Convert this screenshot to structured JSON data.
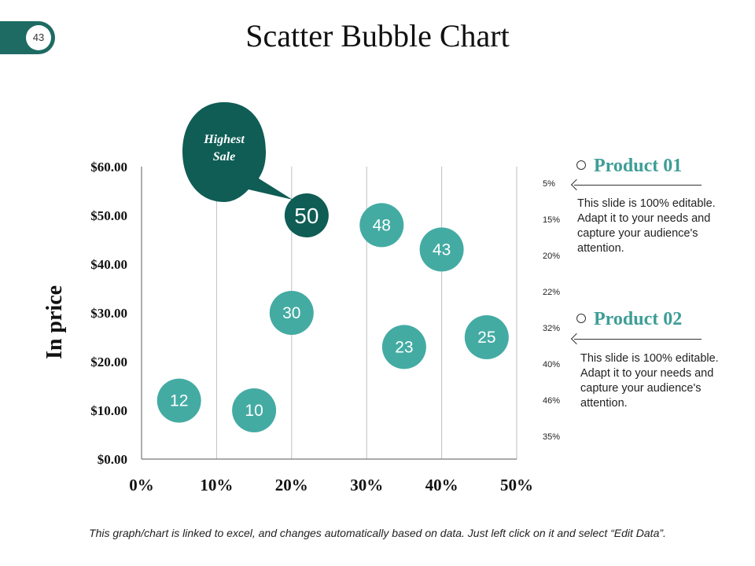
{
  "page": {
    "number": "43"
  },
  "title": "Scatter Bubble Chart",
  "colors": {
    "accent": "#1d6b63",
    "bubble": "#44aba3",
    "highlight": "#0f5d55",
    "grid": "#bfbfbf"
  },
  "callout": {
    "line1": "Highest",
    "line2": "Sale"
  },
  "side_percent_labels": [
    "5%",
    "15%",
    "20%",
    "22%",
    "32%",
    "40%",
    "46%",
    "35%"
  ],
  "products": [
    {
      "name": "Product 01",
      "description": "This slide is 100% editable. Adapt it to your needs and capture your audience's attention."
    },
    {
      "name": "Product 02",
      "description": "This slide is 100% editable. Adapt it to your needs and capture your audience's attention."
    }
  ],
  "footer": "This graph/chart is linked to excel, and changes automatically based on data. Just left click on it and select “Edit Data”.",
  "chart_data": {
    "type": "scatter",
    "title": "Scatter Bubble Chart",
    "xlabel": "",
    "ylabel": "In price",
    "xlim": [
      0,
      50
    ],
    "ylim": [
      0,
      60
    ],
    "x_tick_labels": [
      "0%",
      "10%",
      "20%",
      "30%",
      "40%",
      "50%"
    ],
    "x_tick_values": [
      0,
      10,
      20,
      30,
      40,
      50
    ],
    "y_tick_labels": [
      "$0.00",
      "$10.00",
      "$20.00",
      "$30.00",
      "$40.00",
      "$50.00",
      "$60.00"
    ],
    "y_tick_values": [
      0,
      10,
      20,
      30,
      40,
      50,
      60
    ],
    "points": [
      {
        "x": 5,
        "y": 12,
        "label": "12",
        "highlight": false
      },
      {
        "x": 15,
        "y": 10,
        "label": "10",
        "highlight": false
      },
      {
        "x": 20,
        "y": 30,
        "label": "30",
        "highlight": false
      },
      {
        "x": 22,
        "y": 50,
        "label": "50",
        "highlight": true
      },
      {
        "x": 32,
        "y": 48,
        "label": "48",
        "highlight": false
      },
      {
        "x": 35,
        "y": 23,
        "label": "23",
        "highlight": false
      },
      {
        "x": 40,
        "y": 43,
        "label": "43",
        "highlight": false
      },
      {
        "x": 46,
        "y": 25,
        "label": "25",
        "highlight": false
      }
    ]
  }
}
